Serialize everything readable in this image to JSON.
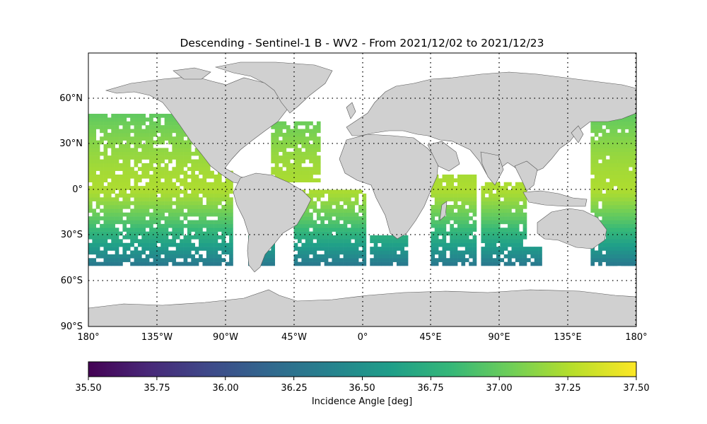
{
  "title": "Descending - Sentinel-1 B - WV2 - From 2021/12/02 to 2021/12/23",
  "map": {
    "lon_ticks": [
      "180°",
      "135°W",
      "90°W",
      "45°W",
      "0°",
      "45°E",
      "90°E",
      "135°E",
      "180°"
    ],
    "lat_ticks": [
      "60°N",
      "30°N",
      "0°",
      "30°S",
      "60°S",
      "90°S"
    ],
    "land_color": "#d0d0d0",
    "coastline_color": "#505050",
    "gridlines": "dotted",
    "ocean_color": "#ffffff"
  },
  "colorbar": {
    "label": "Incidence Angle [deg]",
    "min": 35.5,
    "max": 37.5,
    "ticks": [
      "35.50",
      "35.75",
      "36.00",
      "36.25",
      "36.50",
      "36.75",
      "37.00",
      "37.25",
      "37.50"
    ],
    "colormap": "viridis",
    "colormap_stops": [
      "#440154",
      "#482878",
      "#3e4989",
      "#31688e",
      "#26828e",
      "#1f9e89",
      "#35b779",
      "#6ece58",
      "#b5de2b",
      "#fde725"
    ]
  },
  "data_description": {
    "latitude_coverage": [
      -50,
      50
    ],
    "value_at_lat_50N": 37.0,
    "value_at_equator": 37.25,
    "value_at_lat_50S": 36.3
  }
}
